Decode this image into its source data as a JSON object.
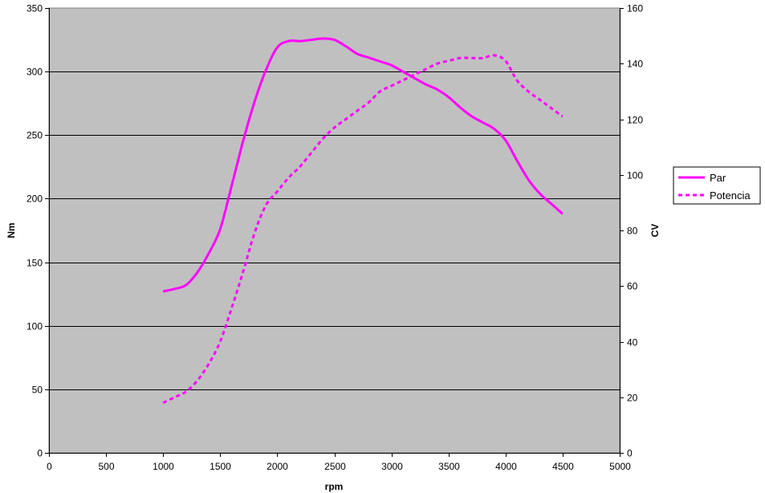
{
  "chart_data": {
    "type": "line",
    "xlabel": "rpm",
    "ylabel_left": "Nm",
    "ylabel_right": "CV",
    "xlim": [
      0,
      5000
    ],
    "xticks": [
      0,
      500,
      1000,
      1500,
      2000,
      2500,
      3000,
      3500,
      4000,
      4500,
      5000
    ],
    "ylim_left": [
      0,
      350
    ],
    "yticks_left": [
      0,
      50,
      100,
      150,
      200,
      250,
      300,
      350
    ],
    "ylim_right": [
      0,
      160
    ],
    "yticks_right": [
      0,
      20,
      40,
      60,
      80,
      100,
      120,
      140,
      160
    ],
    "grid": "horizontal",
    "legend_position": "right",
    "colors": {
      "plot_background": "#c0c0c0",
      "series": "#ff00ff",
      "grid": "#000000"
    },
    "series": [
      {
        "name": "Par",
        "axis": "left",
        "style": "solid",
        "x": [
          1000,
          1100,
          1200,
          1300,
          1400,
          1500,
          1600,
          1700,
          1800,
          1900,
          2000,
          2100,
          2200,
          2300,
          2400,
          2500,
          2600,
          2700,
          2800,
          2900,
          3000,
          3100,
          3200,
          3300,
          3400,
          3500,
          3600,
          3700,
          3800,
          3900,
          4000,
          4100,
          4200,
          4300,
          4400,
          4500
        ],
        "y": [
          127,
          129,
          132,
          142,
          157,
          176,
          210,
          245,
          276,
          301,
          319,
          324,
          324,
          325,
          326,
          325,
          320,
          314,
          311,
          308,
          305,
          300,
          295,
          290,
          286,
          280,
          272,
          265,
          260,
          255,
          246,
          230,
          215,
          204,
          196,
          188
        ]
      },
      {
        "name": "Potencia",
        "axis": "right",
        "style": "dashed",
        "x": [
          1000,
          1100,
          1200,
          1300,
          1400,
          1500,
          1600,
          1700,
          1800,
          1900,
          2000,
          2100,
          2200,
          2300,
          2400,
          2500,
          2600,
          2700,
          2800,
          2900,
          3000,
          3100,
          3200,
          3300,
          3400,
          3500,
          3600,
          3700,
          3800,
          3900,
          4000,
          4100,
          4200,
          4300,
          4400,
          4500
        ],
        "y": [
          18,
          20,
          22,
          26,
          32,
          40,
          52,
          65,
          79,
          89,
          94,
          99,
          103,
          108,
          113,
          117,
          120,
          123,
          126,
          130,
          132,
          134,
          136,
          138,
          140,
          141,
          142,
          142,
          142,
          143,
          141,
          134,
          130,
          127,
          124,
          121
        ]
      }
    ]
  }
}
